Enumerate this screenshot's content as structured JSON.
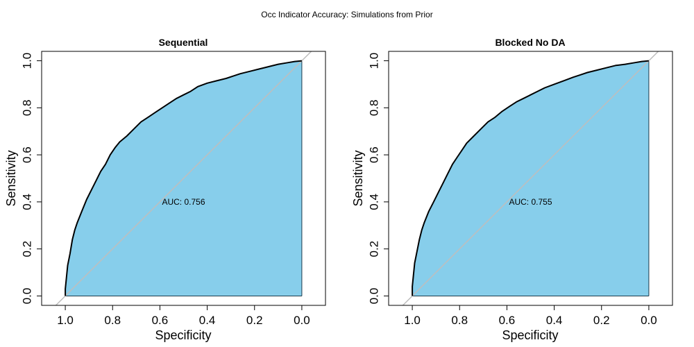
{
  "figure": {
    "title": "Occ Indicator Accuracy: Simulations from Prior"
  },
  "colors": {
    "fill": "#87ceeb",
    "curve": "#000000",
    "diagonal": "#bebebe",
    "frame": "#000000"
  },
  "chart_data": [
    {
      "type": "area",
      "title": "Sequential",
      "xlabel": "Specificity",
      "ylabel": "Sensitivity",
      "x_reversed": true,
      "xlim": [
        1.1,
        -0.1
      ],
      "ylim": [
        -0.04,
        1.04
      ],
      "xticks": [
        "1.0",
        "0.8",
        "0.6",
        "0.4",
        "0.2",
        "0.0"
      ],
      "yticks": [
        "0.0",
        "0.2",
        "0.4",
        "0.6",
        "0.8",
        "1.0"
      ],
      "annotation": "AUC: 0.756",
      "annotation_at": [
        0.5,
        0.4
      ],
      "reference_line": "identity",
      "series": [
        {
          "x": [
            1.0,
            1.0,
            0.995,
            0.99,
            0.98,
            0.97,
            0.96,
            0.95,
            0.93,
            0.91,
            0.89,
            0.87,
            0.85,
            0.83,
            0.81,
            0.79,
            0.77,
            0.74,
            0.71,
            0.68,
            0.65,
            0.62,
            0.59,
            0.56,
            0.53,
            0.5,
            0.47,
            0.44,
            0.4,
            0.36,
            0.32,
            0.29,
            0.26,
            0.22,
            0.18,
            0.14,
            0.1,
            0.06,
            0.03,
            0.0
          ],
          "y": [
            0.0,
            0.03,
            0.08,
            0.13,
            0.18,
            0.24,
            0.28,
            0.31,
            0.36,
            0.41,
            0.45,
            0.49,
            0.53,
            0.56,
            0.6,
            0.63,
            0.655,
            0.68,
            0.71,
            0.74,
            0.76,
            0.78,
            0.8,
            0.82,
            0.84,
            0.855,
            0.87,
            0.89,
            0.905,
            0.915,
            0.925,
            0.935,
            0.945,
            0.955,
            0.965,
            0.975,
            0.985,
            0.992,
            0.997,
            1.0
          ]
        }
      ]
    },
    {
      "type": "area",
      "title": "Blocked No DA",
      "xlabel": "Specificity",
      "ylabel": "Sensitivity",
      "x_reversed": true,
      "xlim": [
        1.1,
        -0.1
      ],
      "ylim": [
        -0.04,
        1.04
      ],
      "xticks": [
        "1.0",
        "0.8",
        "0.6",
        "0.4",
        "0.2",
        "0.0"
      ],
      "yticks": [
        "0.0",
        "0.2",
        "0.4",
        "0.6",
        "0.8",
        "1.0"
      ],
      "annotation": "AUC: 0.755",
      "annotation_at": [
        0.5,
        0.4
      ],
      "reference_line": "identity",
      "series": [
        {
          "x": [
            1.0,
            1.0,
            0.995,
            0.99,
            0.98,
            0.97,
            0.96,
            0.95,
            0.93,
            0.91,
            0.89,
            0.87,
            0.85,
            0.83,
            0.81,
            0.79,
            0.77,
            0.74,
            0.71,
            0.68,
            0.65,
            0.62,
            0.59,
            0.56,
            0.53,
            0.5,
            0.47,
            0.44,
            0.4,
            0.36,
            0.32,
            0.29,
            0.26,
            0.22,
            0.18,
            0.14,
            0.1,
            0.06,
            0.03,
            0.0
          ],
          "y": [
            0.0,
            0.04,
            0.09,
            0.14,
            0.19,
            0.24,
            0.28,
            0.31,
            0.36,
            0.4,
            0.44,
            0.48,
            0.52,
            0.56,
            0.59,
            0.62,
            0.65,
            0.68,
            0.71,
            0.74,
            0.76,
            0.785,
            0.805,
            0.825,
            0.84,
            0.855,
            0.87,
            0.885,
            0.9,
            0.915,
            0.93,
            0.94,
            0.95,
            0.96,
            0.97,
            0.98,
            0.985,
            0.992,
            0.997,
            1.0
          ]
        }
      ]
    }
  ]
}
